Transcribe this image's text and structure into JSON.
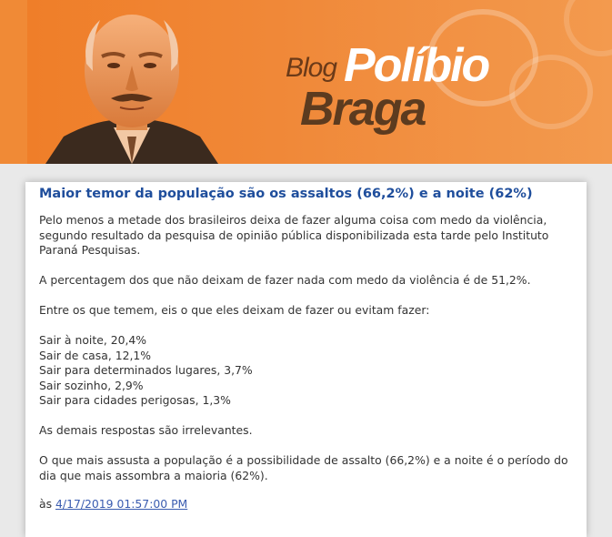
{
  "header": {
    "logo_blog": "Blog",
    "logo_name_first": "Políbio",
    "logo_name_last": "Braga",
    "colors": {
      "background": "#ef7d27",
      "logo_white": "#ffffff",
      "logo_brown": "#5c3b1f"
    }
  },
  "post": {
    "title": "Maior temor da população são os assaltos (66,2%) e a noite (62%)",
    "paragraphs": [
      "Pelo menos a metade dos brasileiros deixa de fazer alguma coisa com medo da violência, segundo resultado da pesquisa de opinião pública disponibilizada esta tarde pelo Instituto Paraná Pesquisas.",
      "A percentagem dos que não deixam de fazer nada com medo da violência é de 51,2%.",
      "Entre os que temem, eis o que eles deixam de fazer ou evitam fazer:"
    ],
    "list_items": [
      "Sair à noite, 20,4%",
      "Sair de casa, 12,1%",
      "Sair para determinados lugares, 3,7%",
      "Sair sozinho, 2,9%",
      "Sair para cidades perigosas, 1,3%"
    ],
    "closing_paragraphs": [
      "As demais respostas são irrelevantes.",
      "O que mais assusta a população é a possibilidade de assalto (66,2%) e a noite é o período do dia que mais assombra a maioria (62%)."
    ],
    "footer_prefix": "às",
    "timestamp": "4/17/2019 01:57:00 PM",
    "colors": {
      "title": "#1f4e9c",
      "link": "#3a5cb0"
    }
  }
}
